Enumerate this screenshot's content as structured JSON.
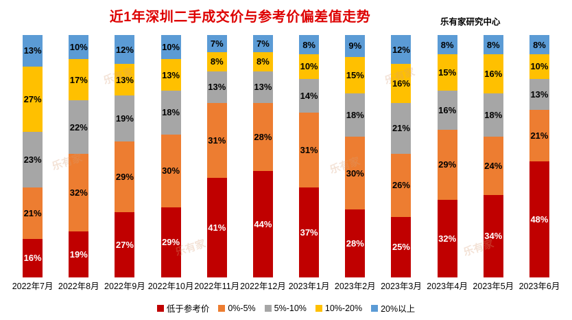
{
  "header": {
    "title": "近1年深圳二手成交价与参考价偏差值走势",
    "source": "乐有家研究中心",
    "title_color": "#dd0000"
  },
  "watermark": {
    "text": "乐有家"
  },
  "chart_data": {
    "type": "bar",
    "stacked": true,
    "orientation": "vertical",
    "title": "近1年深圳二手成交价与参考价偏差值走势",
    "xlabel": "",
    "ylabel": "",
    "ylim": [
      0,
      100
    ],
    "grid": false,
    "legend_position": "bottom",
    "value_suffix": "%",
    "categories": [
      "2022年7月",
      "2022年8月",
      "2022年9月",
      "2022年10月",
      "2022年11月",
      "2022年12月",
      "2023年1月",
      "2023年2月",
      "2023年3月",
      "2023年4月",
      "2023年5月",
      "2023年6月"
    ],
    "series": [
      {
        "name": "低于参考价",
        "color": "#C00000",
        "label_color": "#FFFFFF",
        "values": [
          16,
          19,
          27,
          29,
          41,
          44,
          37,
          28,
          25,
          32,
          34,
          48
        ]
      },
      {
        "name": "0%-5%",
        "color": "#ED7D31",
        "label_color": "#000000",
        "values": [
          21,
          32,
          29,
          30,
          31,
          28,
          31,
          30,
          26,
          29,
          24,
          21
        ]
      },
      {
        "name": "5%-10%",
        "color": "#A6A6A6",
        "label_color": "#000000",
        "values": [
          23,
          22,
          19,
          18,
          13,
          13,
          14,
          18,
          21,
          16,
          18,
          13
        ]
      },
      {
        "name": "10%-20%",
        "color": "#FFC000",
        "label_color": "#000000",
        "values": [
          27,
          17,
          13,
          13,
          8,
          8,
          10,
          15,
          16,
          15,
          16,
          10
        ]
      },
      {
        "name": "20%以上",
        "color": "#5B9BD5",
        "label_color": "#000000",
        "values": [
          13,
          10,
          12,
          10,
          7,
          7,
          8,
          9,
          12,
          8,
          8,
          8
        ]
      }
    ]
  }
}
